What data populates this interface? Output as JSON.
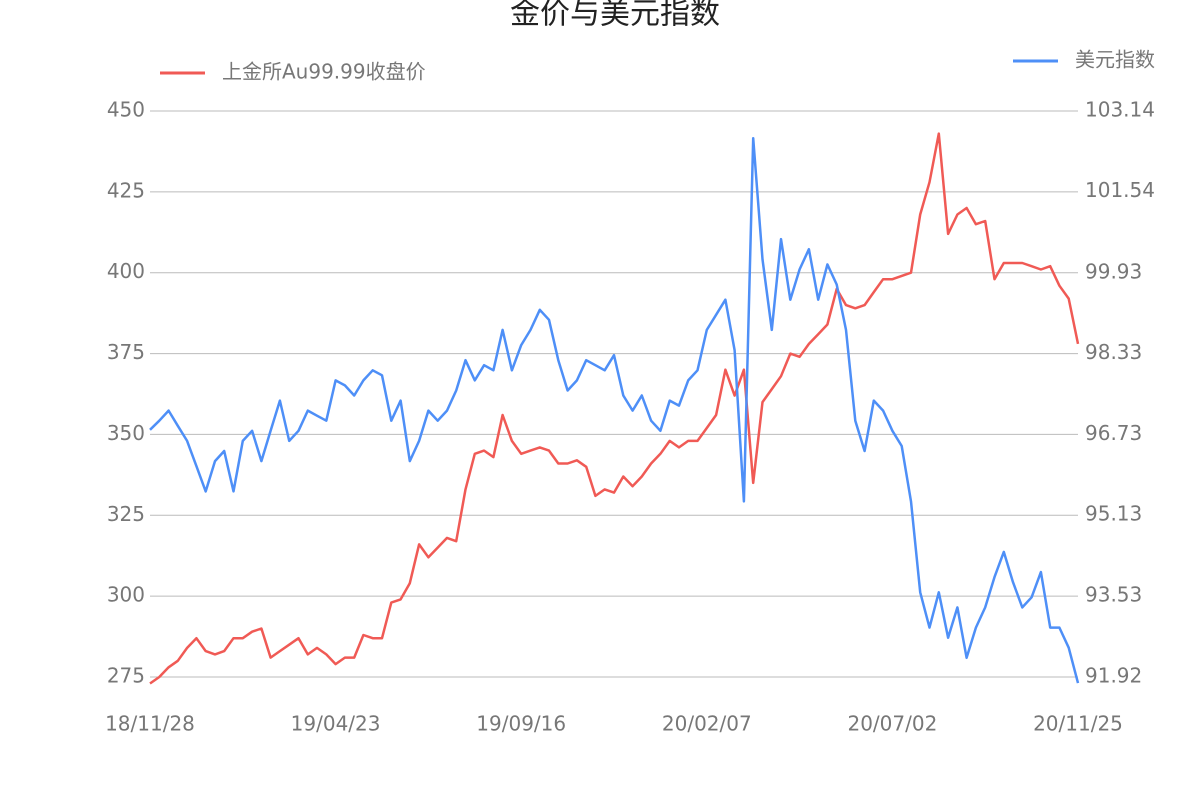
{
  "chart_data": {
    "type": "line",
    "title": "金价与美元指数",
    "categories": [
      "18/11/28",
      null,
      null,
      null,
      null,
      null,
      null,
      null,
      null,
      null,
      null,
      null,
      null,
      null,
      null,
      null,
      null,
      null,
      null,
      null,
      "19/04/23",
      null,
      null,
      null,
      null,
      null,
      null,
      null,
      null,
      null,
      null,
      null,
      null,
      null,
      null,
      null,
      null,
      null,
      null,
      null,
      "19/09/16",
      null,
      null,
      null,
      null,
      null,
      null,
      null,
      null,
      null,
      null,
      null,
      null,
      null,
      null,
      null,
      null,
      null,
      null,
      null,
      "20/02/07",
      null,
      null,
      null,
      null,
      null,
      null,
      null,
      null,
      null,
      null,
      null,
      null,
      null,
      null,
      null,
      null,
      null,
      null,
      null,
      "20/07/02",
      null,
      null,
      null,
      null,
      null,
      null,
      null,
      null,
      null,
      null,
      null,
      null,
      null,
      null,
      null,
      null,
      null,
      null,
      null,
      "20/11/25"
    ],
    "series": [
      {
        "name": "上金所Au99.99收盘价",
        "color": "#f05a55",
        "axis": "y",
        "values": [
          273,
          275,
          278,
          280,
          284,
          287,
          283,
          282,
          283,
          287,
          287,
          289,
          290,
          281,
          283,
          285,
          287,
          282,
          284,
          282,
          279,
          281,
          281,
          288,
          287,
          287,
          298,
          299,
          304,
          316,
          312,
          315,
          318,
          317,
          333,
          344,
          345,
          343,
          356,
          348,
          344,
          345,
          346,
          345,
          341,
          341,
          342,
          340,
          331,
          333,
          332,
          337,
          334,
          337,
          341,
          344,
          348,
          346,
          348,
          348,
          352,
          356,
          370,
          362,
          370,
          335,
          360,
          364,
          368,
          375,
          374,
          378,
          381,
          384,
          395,
          390,
          389,
          390,
          394,
          398,
          398,
          399,
          400,
          418,
          428,
          443,
          412,
          418,
          420,
          415,
          416,
          398,
          403,
          403,
          403,
          402,
          401,
          402,
          396,
          392,
          378
        ]
      },
      {
        "name": "美元指数",
        "color": "#4e8ff7",
        "axis": "y2",
        "values": [
          96.82,
          97.0,
          97.2,
          96.9,
          96.6,
          96.1,
          95.6,
          96.2,
          96.4,
          95.6,
          96.6,
          96.8,
          96.2,
          96.8,
          97.4,
          96.6,
          96.8,
          97.2,
          97.1,
          97.0,
          97.8,
          97.7,
          97.5,
          97.8,
          98.0,
          97.9,
          97.0,
          97.4,
          96.2,
          96.6,
          97.2,
          97.0,
          97.2,
          97.6,
          98.2,
          97.8,
          98.1,
          98.0,
          98.8,
          98.0,
          98.5,
          98.8,
          99.2,
          99.0,
          98.2,
          97.6,
          97.8,
          98.2,
          98.1,
          98.0,
          98.3,
          97.5,
          97.2,
          97.5,
          97.0,
          96.8,
          97.4,
          97.3,
          97.8,
          98.0,
          98.8,
          99.1,
          99.4,
          98.4,
          95.4,
          102.6,
          100.2,
          98.8,
          100.6,
          99.4,
          100.0,
          100.4,
          99.4,
          100.1,
          99.7,
          98.8,
          97.0,
          96.4,
          97.4,
          97.2,
          96.8,
          96.5,
          95.4,
          93.6,
          92.9,
          93.6,
          92.7,
          93.3,
          92.3,
          92.9,
          93.3,
          93.9,
          94.4,
          93.8,
          93.3,
          93.5,
          94.0,
          92.9,
          92.9,
          92.5,
          91.8
        ]
      }
    ],
    "ylim": [
      275,
      450
    ],
    "yticks": [
      275,
      300,
      325,
      350,
      375,
      400,
      425,
      450
    ],
    "y2lim": [
      91.92,
      103.14
    ],
    "y2ticks": [
      91.92,
      93.53,
      95.13,
      96.73,
      98.33,
      99.93,
      101.54,
      103.14
    ],
    "grid": true
  }
}
